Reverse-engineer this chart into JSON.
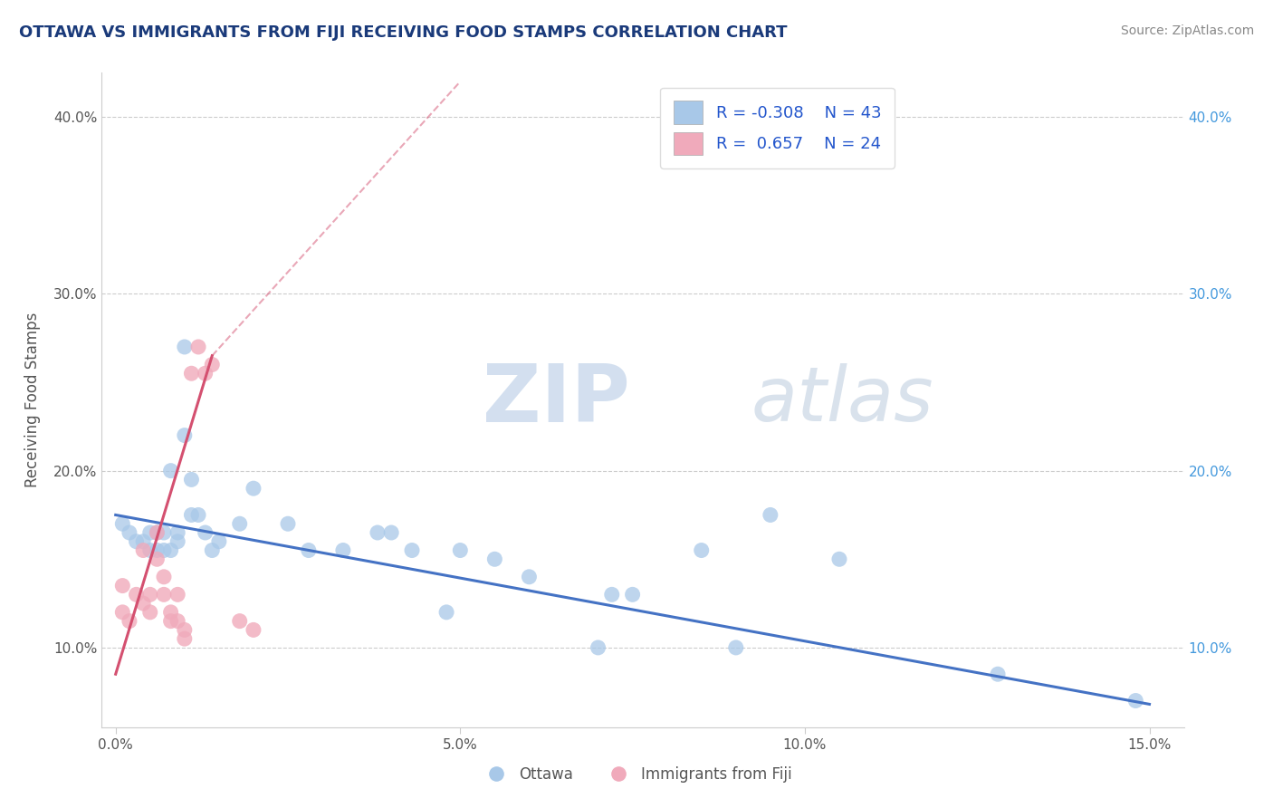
{
  "title": "OTTAWA VS IMMIGRANTS FROM FIJI RECEIVING FOOD STAMPS CORRELATION CHART",
  "source": "Source: ZipAtlas.com",
  "ylabel": "Receiving Food Stamps",
  "xlim": [
    -0.002,
    0.155
  ],
  "ylim": [
    0.055,
    0.425
  ],
  "xticks": [
    0.0,
    0.05,
    0.1,
    0.15
  ],
  "xticklabels": [
    "0.0%",
    "5.0%",
    "10.0%",
    "15.0%"
  ],
  "yticks": [
    0.1,
    0.2,
    0.3,
    0.4
  ],
  "yticklabels": [
    "10.0%",
    "20.0%",
    "30.0%",
    "40.0%"
  ],
  "legend_r_blue": "-0.308",
  "legend_n_blue": "43",
  "legend_r_pink": "0.657",
  "legend_n_pink": "24",
  "blue_color": "#a8c8e8",
  "pink_color": "#f0aabb",
  "blue_line_color": "#4472c4",
  "pink_line_color": "#d45070",
  "title_color": "#1a3a7a",
  "source_color": "#888888",
  "axis_label_color": "#555555",
  "tick_color": "#555555",
  "legend_r_color": "#2255cc",
  "blue_scatter": [
    [
      0.001,
      0.17
    ],
    [
      0.002,
      0.165
    ],
    [
      0.003,
      0.16
    ],
    [
      0.004,
      0.16
    ],
    [
      0.005,
      0.165
    ],
    [
      0.005,
      0.155
    ],
    [
      0.006,
      0.165
    ],
    [
      0.006,
      0.155
    ],
    [
      0.007,
      0.155
    ],
    [
      0.007,
      0.165
    ],
    [
      0.008,
      0.2
    ],
    [
      0.008,
      0.155
    ],
    [
      0.009,
      0.165
    ],
    [
      0.009,
      0.16
    ],
    [
      0.01,
      0.27
    ],
    [
      0.01,
      0.22
    ],
    [
      0.011,
      0.195
    ],
    [
      0.011,
      0.175
    ],
    [
      0.012,
      0.175
    ],
    [
      0.013,
      0.165
    ],
    [
      0.014,
      0.155
    ],
    [
      0.015,
      0.16
    ],
    [
      0.018,
      0.17
    ],
    [
      0.02,
      0.19
    ],
    [
      0.025,
      0.17
    ],
    [
      0.028,
      0.155
    ],
    [
      0.033,
      0.155
    ],
    [
      0.038,
      0.165
    ],
    [
      0.04,
      0.165
    ],
    [
      0.043,
      0.155
    ],
    [
      0.048,
      0.12
    ],
    [
      0.05,
      0.155
    ],
    [
      0.055,
      0.15
    ],
    [
      0.06,
      0.14
    ],
    [
      0.07,
      0.1
    ],
    [
      0.072,
      0.13
    ],
    [
      0.075,
      0.13
    ],
    [
      0.085,
      0.155
    ],
    [
      0.09,
      0.1
    ],
    [
      0.095,
      0.175
    ],
    [
      0.105,
      0.15
    ],
    [
      0.128,
      0.085
    ],
    [
      0.148,
      0.07
    ]
  ],
  "pink_scatter": [
    [
      0.001,
      0.135
    ],
    [
      0.001,
      0.12
    ],
    [
      0.002,
      0.115
    ],
    [
      0.003,
      0.13
    ],
    [
      0.004,
      0.125
    ],
    [
      0.004,
      0.155
    ],
    [
      0.005,
      0.13
    ],
    [
      0.005,
      0.12
    ],
    [
      0.006,
      0.165
    ],
    [
      0.006,
      0.15
    ],
    [
      0.007,
      0.14
    ],
    [
      0.007,
      0.13
    ],
    [
      0.008,
      0.12
    ],
    [
      0.008,
      0.115
    ],
    [
      0.009,
      0.13
    ],
    [
      0.009,
      0.115
    ],
    [
      0.01,
      0.11
    ],
    [
      0.01,
      0.105
    ],
    [
      0.011,
      0.255
    ],
    [
      0.012,
      0.27
    ],
    [
      0.013,
      0.255
    ],
    [
      0.014,
      0.26
    ],
    [
      0.018,
      0.115
    ],
    [
      0.02,
      0.11
    ]
  ],
  "blue_trendline": [
    [
      0.0,
      0.175
    ],
    [
      0.15,
      0.068
    ]
  ],
  "pink_trendline_solid": [
    [
      0.0,
      0.085
    ],
    [
      0.014,
      0.265
    ]
  ],
  "pink_trendline_dashed": [
    [
      0.014,
      0.265
    ],
    [
      0.05,
      0.42
    ]
  ]
}
